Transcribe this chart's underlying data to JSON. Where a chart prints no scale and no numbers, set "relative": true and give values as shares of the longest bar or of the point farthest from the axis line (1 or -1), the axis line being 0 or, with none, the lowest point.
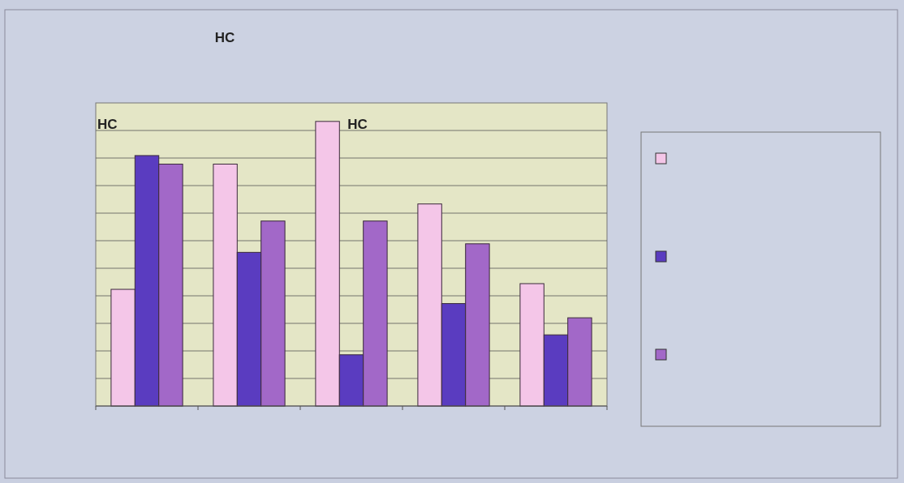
{
  "chart_data": {
    "type": "bar",
    "title": "HC",
    "annotations": [
      "HC",
      "HC"
    ],
    "relative": true,
    "categories": [
      null,
      null,
      null,
      null,
      null
    ],
    "series": [
      {
        "color": "#f4c6e8",
        "values": [
          0.41,
          0.85,
          1,
          0.71,
          0.43
        ]
      },
      {
        "color": "#5a3cc0",
        "values": [
          0.88,
          0.54,
          0.18,
          0.36,
          0.25
        ]
      },
      {
        "color": "#a268c8",
        "values": [
          0.85,
          0.65,
          0.65,
          0.57,
          0.31
        ]
      }
    ],
    "grid": true
  }
}
